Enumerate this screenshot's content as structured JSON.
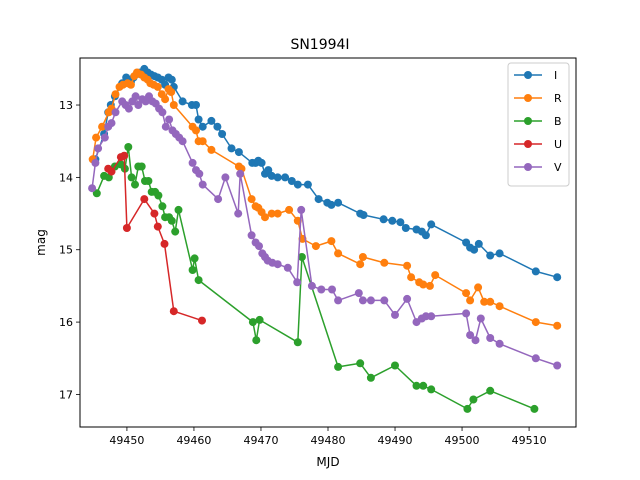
{
  "chart_data": {
    "type": "line",
    "title": "SN1994I",
    "xlabel": "MJD",
    "ylabel": "mag",
    "xlim": [
      49443.0,
      49517.0
    ],
    "ylim": [
      17.45,
      12.35
    ],
    "y_inverted": true,
    "grid": false,
    "legend_position": "top-right",
    "x_ticks": [
      49450,
      49460,
      49470,
      49480,
      49490,
      49500,
      49510
    ],
    "y_ticks": [
      13,
      14,
      15,
      16,
      17
    ],
    "series": [
      {
        "name": "I",
        "color": "#1f77b4",
        "x": [
          49445.3,
          49446.6,
          49447.2,
          49447.6,
          49448.2,
          49449.3,
          49449.9,
          49450.6,
          49451.0,
          49451.6,
          49452.0,
          49452.6,
          49453.1,
          49453.6,
          49454.1,
          49454.6,
          49455.2,
          49455.7,
          49456.2,
          49456.7,
          49457.0,
          49458.3,
          49459.7,
          49460.3,
          49460.7,
          49461.3,
          49462.6,
          49463.5,
          49464.2,
          49465.6,
          49466.7,
          49468.7,
          49469.2,
          49469.6,
          49470.1,
          49470.6,
          49471.1,
          49471.6,
          49472.5,
          49473.6,
          49474.6,
          49475.5,
          49477.0,
          49478.6,
          49479.9,
          49480.5,
          49481.5,
          49484.8,
          49485.3,
          49488.3,
          49489.6,
          49490.8,
          49491.6,
          49493.2,
          49494.0,
          49494.6,
          49495.4,
          49500.6,
          49501.2,
          49501.8,
          49502.5,
          49504.2,
          49505.6,
          49511.0,
          49514.2
        ],
        "y": [
          13.75,
          13.4,
          13.1,
          13.0,
          12.88,
          12.7,
          12.62,
          12.68,
          12.62,
          12.57,
          12.55,
          12.5,
          12.55,
          12.58,
          12.6,
          12.62,
          12.65,
          12.72,
          12.62,
          12.65,
          12.75,
          12.95,
          13.0,
          13.0,
          13.2,
          13.3,
          13.22,
          13.3,
          13.4,
          13.6,
          13.65,
          13.8,
          13.8,
          13.77,
          13.8,
          13.95,
          13.9,
          13.98,
          14.0,
          14.0,
          14.05,
          14.1,
          14.1,
          14.3,
          14.35,
          14.38,
          14.35,
          14.5,
          14.52,
          14.58,
          14.6,
          14.62,
          14.7,
          14.72,
          14.75,
          14.8,
          14.65,
          14.9,
          14.97,
          15.0,
          14.92,
          15.08,
          15.05,
          15.3,
          15.38
        ]
      },
      {
        "name": "R",
        "color": "#ff7f0e",
        "x": [
          49444.9,
          49445.4,
          49446.3,
          49447.3,
          49447.7,
          49448.3,
          49448.9,
          49449.4,
          49450.1,
          49450.6,
          49451.1,
          49451.5,
          49452.1,
          49452.6,
          49453.1,
          49453.5,
          49454.0,
          49454.6,
          49455.2,
          49455.7,
          49456.2,
          49456.6,
          49457.0,
          49459.8,
          49460.3,
          49460.7,
          49461.3,
          49462.6,
          49466.7,
          49467.1,
          49468.6,
          49469.2,
          49469.6,
          49470.1,
          49470.6,
          49471.6,
          49472.5,
          49474.2,
          49475.5,
          49476.2,
          49478.2,
          49480.5,
          49481.5,
          49484.8,
          49485.2,
          49488.4,
          49491.8,
          49492.4,
          49493.6,
          49494.2,
          49495.2,
          49496.0,
          49500.6,
          49501.2,
          49502.4,
          49503.3,
          49504.2,
          49505.6,
          49511.0,
          49514.2
        ],
        "y": [
          13.75,
          13.45,
          13.3,
          13.1,
          13.05,
          12.85,
          12.75,
          12.72,
          12.7,
          12.72,
          12.6,
          12.55,
          12.58,
          12.62,
          12.65,
          12.7,
          12.72,
          12.75,
          12.85,
          12.92,
          12.78,
          12.82,
          13.0,
          13.3,
          13.35,
          13.5,
          13.5,
          13.62,
          13.85,
          13.88,
          14.3,
          14.4,
          14.42,
          14.48,
          14.55,
          14.5,
          14.5,
          14.45,
          14.6,
          14.85,
          14.95,
          14.88,
          15.05,
          15.2,
          15.1,
          15.18,
          15.22,
          15.38,
          15.45,
          15.48,
          15.5,
          15.35,
          15.6,
          15.7,
          15.52,
          15.72,
          15.72,
          15.78,
          16.0,
          16.05
        ]
      },
      {
        "name": "B",
        "color": "#2ca02c",
        "x": [
          49445.5,
          49446.6,
          49447.3,
          49448.2,
          49449.1,
          49449.7,
          49450.2,
          49450.7,
          49451.2,
          49451.7,
          49452.2,
          49452.7,
          49453.2,
          49453.7,
          49454.2,
          49454.7,
          49455.3,
          49455.7,
          49456.3,
          49456.7,
          49457.2,
          49457.7,
          49459.8,
          49460.1,
          49460.7,
          49468.8,
          49469.3,
          49469.8,
          49475.5,
          49476.1,
          49481.5,
          49484.8,
          49486.4,
          49490.0,
          49493.2,
          49494.2,
          49495.4,
          49500.8,
          49501.7,
          49504.2,
          49510.8
        ],
        "y": [
          14.22,
          13.98,
          14.0,
          13.85,
          13.82,
          13.88,
          13.58,
          14.0,
          14.1,
          13.85,
          13.85,
          14.05,
          14.05,
          14.2,
          14.2,
          14.25,
          14.4,
          14.55,
          14.55,
          14.6,
          14.75,
          14.45,
          15.28,
          15.12,
          15.42,
          16.0,
          16.25,
          15.97,
          16.28,
          15.1,
          16.62,
          16.57,
          16.77,
          16.6,
          16.88,
          16.88,
          16.93,
          17.2,
          17.07,
          16.95,
          17.2
        ]
      },
      {
        "name": "U",
        "color": "#d62728",
        "x": [
          49447.2,
          49447.7,
          49449.1,
          49449.6,
          49450.0,
          49452.6,
          49454.1,
          49454.6,
          49455.6,
          49457.0,
          49461.2
        ],
        "y": [
          13.88,
          13.92,
          13.72,
          13.7,
          14.7,
          14.3,
          14.5,
          14.68,
          14.92,
          15.85,
          15.98
        ]
      },
      {
        "name": "V",
        "color": "#9467bd",
        "x": [
          49444.8,
          49445.3,
          49445.7,
          49446.7,
          49447.2,
          49447.7,
          49448.3,
          49449.3,
          49449.8,
          49450.3,
          49450.8,
          49451.3,
          49451.7,
          49452.3,
          49452.8,
          49453.3,
          49453.8,
          49454.3,
          49454.8,
          49455.3,
          49455.8,
          49456.3,
          49456.8,
          49457.3,
          49457.8,
          49458.3,
          49459.8,
          49460.3,
          49460.8,
          49461.3,
          49463.6,
          49464.7,
          49466.6,
          49466.9,
          49468.6,
          49469.2,
          49469.7,
          49470.2,
          49470.6,
          49471.0,
          49471.7,
          49472.5,
          49474.0,
          49475.4,
          49476.0,
          49477.6,
          49479.0,
          49480.6,
          49481.5,
          49484.6,
          49485.2,
          49486.4,
          49488.4,
          49490.0,
          49491.8,
          49493.2,
          49494.0,
          49494.6,
          49495.4,
          49500.6,
          49501.2,
          49502.0,
          49502.8,
          49504.2,
          49505.6,
          49511.0,
          49514.2
        ],
        "y": [
          14.15,
          13.8,
          13.6,
          13.45,
          13.3,
          13.25,
          13.1,
          12.95,
          13.0,
          13.05,
          12.95,
          12.88,
          13.0,
          12.92,
          12.95,
          12.88,
          12.95,
          12.98,
          13.05,
          13.1,
          13.3,
          13.2,
          13.35,
          13.4,
          13.45,
          13.5,
          13.8,
          13.9,
          13.95,
          14.1,
          14.3,
          14.0,
          14.5,
          13.95,
          14.8,
          14.9,
          14.95,
          15.05,
          15.1,
          15.15,
          15.18,
          15.2,
          15.25,
          15.45,
          14.45,
          15.5,
          15.55,
          15.55,
          15.7,
          15.6,
          15.7,
          15.7,
          15.7,
          15.9,
          15.68,
          16.0,
          15.95,
          15.92,
          15.92,
          15.88,
          16.18,
          16.25,
          15.95,
          16.22,
          16.3,
          16.5,
          16.6
        ]
      }
    ]
  }
}
